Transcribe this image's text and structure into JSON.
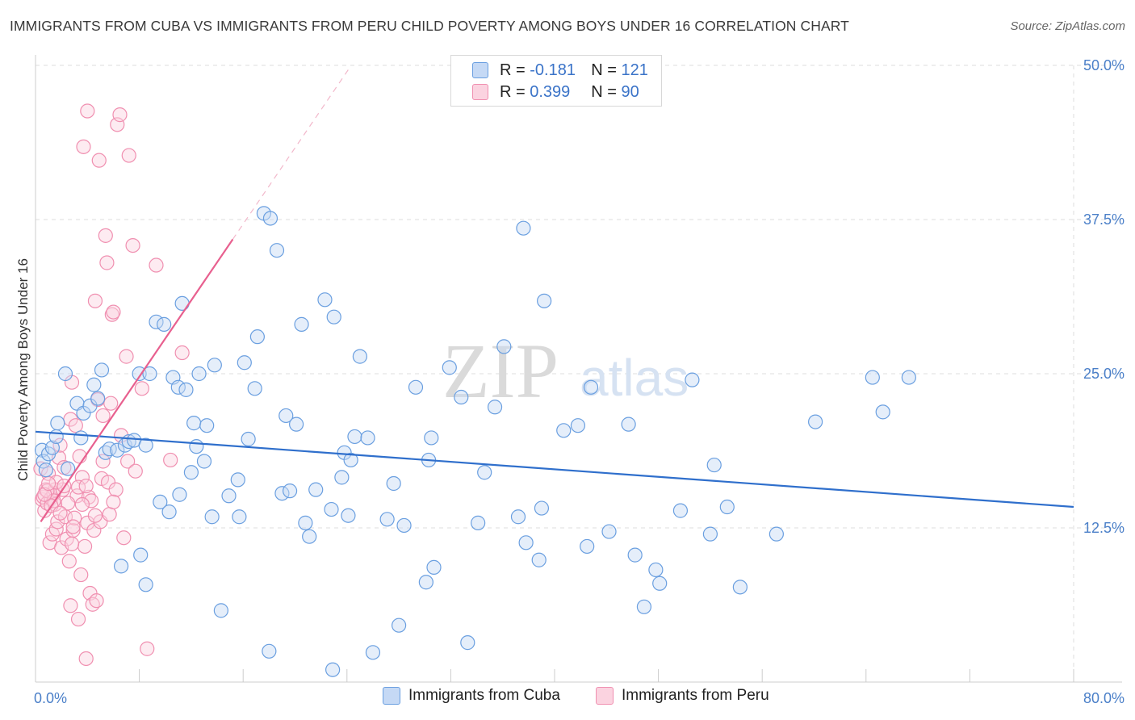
{
  "title": "IMMIGRANTS FROM CUBA VS IMMIGRANTS FROM PERU CHILD POVERTY AMONG BOYS UNDER 16 CORRELATION CHART",
  "source": "Source: ZipAtlas.com",
  "watermark": {
    "zip": "ZIP",
    "atlas": "atlas"
  },
  "legend": {
    "cuba": {
      "r_label": "R = ",
      "r_value": "-0.181",
      "n_label": "N = ",
      "n_value": "121"
    },
    "peru": {
      "r_label": "R = ",
      "r_value": "0.399",
      "n_label": "N = ",
      "n_value": "90"
    }
  },
  "bottom_legend": {
    "cuba": "Immigrants from Cuba",
    "peru": "Immigrants from Peru"
  },
  "colors": {
    "cuba": "#6a9fe0",
    "cuba_fill": "#c5d9f5",
    "cuba_line": "#2f6fcc",
    "peru": "#f08fb0",
    "peru_fill": "#fbd3e0",
    "peru_line": "#e8608f",
    "axis_text": "#4a7fc8",
    "grid": "#dddddd"
  },
  "chart_data": {
    "type": "scatter",
    "title": "IMMIGRANTS FROM CUBA VS IMMIGRANTS FROM PERU CHILD POVERTY AMONG BOYS UNDER 16 CORRELATION CHART",
    "xlabel": "",
    "ylabel": "Child Poverty Among Boys Under 16",
    "xlim": [
      0,
      80
    ],
    "ylim": [
      0,
      50
    ],
    "x_tick_labels": [
      {
        "value": 0,
        "label": "0.0%"
      },
      {
        "value": 80,
        "label": "80.0%"
      }
    ],
    "y_tick_labels": [
      {
        "value": 12.5,
        "label": "12.5%"
      },
      {
        "value": 25,
        "label": "25.0%"
      },
      {
        "value": 37.5,
        "label": "37.5%"
      },
      {
        "value": 50,
        "label": "50.0%"
      }
    ],
    "grid": true,
    "legend_position": "top-center",
    "series": [
      {
        "name": "Immigrants from Cuba",
        "r": -0.181,
        "n": 121,
        "trend": {
          "x": [
            0,
            80
          ],
          "y": [
            20.3,
            14.2
          ]
        },
        "points": [
          [
            0.5,
            18.8
          ],
          [
            0.6,
            17.9
          ],
          [
            0.8,
            17.2
          ],
          [
            1.0,
            18.5
          ],
          [
            1.3,
            19.0
          ],
          [
            1.6,
            19.9
          ],
          [
            1.7,
            21.0
          ],
          [
            2.3,
            25.0
          ],
          [
            2.5,
            17.3
          ],
          [
            3.2,
            22.6
          ],
          [
            3.5,
            19.8
          ],
          [
            3.7,
            21.8
          ],
          [
            4.2,
            22.4
          ],
          [
            4.5,
            24.1
          ],
          [
            4.8,
            23.0
          ],
          [
            5.1,
            25.3
          ],
          [
            5.4,
            18.6
          ],
          [
            5.7,
            18.9
          ],
          [
            6.3,
            18.8
          ],
          [
            6.6,
            9.4
          ],
          [
            6.9,
            19.2
          ],
          [
            7.2,
            19.5
          ],
          [
            7.6,
            19.6
          ],
          [
            8.0,
            25.0
          ],
          [
            8.1,
            10.3
          ],
          [
            8.5,
            19.2
          ],
          [
            8.5,
            7.9
          ],
          [
            8.8,
            25.0
          ],
          [
            9.3,
            29.2
          ],
          [
            9.6,
            14.6
          ],
          [
            9.9,
            29.0
          ],
          [
            10.3,
            13.8
          ],
          [
            10.6,
            24.7
          ],
          [
            11.0,
            23.9
          ],
          [
            11.1,
            15.2
          ],
          [
            11.3,
            30.7
          ],
          [
            11.6,
            23.7
          ],
          [
            12.0,
            17.0
          ],
          [
            12.2,
            21.0
          ],
          [
            12.4,
            19.1
          ],
          [
            12.6,
            25.0
          ],
          [
            13.0,
            17.9
          ],
          [
            13.2,
            20.8
          ],
          [
            13.6,
            13.4
          ],
          [
            13.8,
            25.7
          ],
          [
            14.3,
            5.8
          ],
          [
            14.9,
            15.1
          ],
          [
            15.6,
            16.4
          ],
          [
            15.7,
            13.4
          ],
          [
            16.1,
            25.9
          ],
          [
            16.4,
            19.7
          ],
          [
            16.9,
            23.8
          ],
          [
            17.1,
            28.0
          ],
          [
            17.6,
            38.0
          ],
          [
            18.0,
            2.5
          ],
          [
            18.1,
            37.6
          ],
          [
            18.6,
            35.0
          ],
          [
            19.0,
            15.3
          ],
          [
            19.3,
            21.6
          ],
          [
            19.6,
            15.5
          ],
          [
            20.1,
            20.9
          ],
          [
            20.5,
            29.0
          ],
          [
            20.8,
            12.9
          ],
          [
            21.1,
            11.8
          ],
          [
            21.6,
            15.6
          ],
          [
            22.3,
            31.0
          ],
          [
            22.8,
            14.0
          ],
          [
            22.9,
            1.0
          ],
          [
            23.0,
            29.6
          ],
          [
            23.6,
            16.6
          ],
          [
            23.8,
            18.6
          ],
          [
            24.1,
            13.5
          ],
          [
            24.3,
            18.0
          ],
          [
            24.6,
            19.9
          ],
          [
            25.0,
            26.4
          ],
          [
            25.6,
            19.8
          ],
          [
            26.0,
            2.4
          ],
          [
            27.1,
            13.2
          ],
          [
            27.6,
            16.1
          ],
          [
            28.0,
            4.6
          ],
          [
            28.4,
            12.7
          ],
          [
            29.3,
            23.9
          ],
          [
            30.1,
            8.1
          ],
          [
            30.3,
            18.0
          ],
          [
            30.5,
            19.8
          ],
          [
            30.7,
            9.3
          ],
          [
            31.9,
            25.5
          ],
          [
            32.8,
            23.1
          ],
          [
            33.3,
            3.2
          ],
          [
            34.1,
            12.9
          ],
          [
            34.6,
            17.0
          ],
          [
            35.4,
            22.3
          ],
          [
            36.1,
            27.2
          ],
          [
            37.2,
            13.4
          ],
          [
            37.6,
            36.8
          ],
          [
            37.8,
            11.3
          ],
          [
            38.8,
            9.9
          ],
          [
            39.2,
            30.9
          ],
          [
            39.0,
            14.1
          ],
          [
            40.7,
            20.4
          ],
          [
            41.8,
            20.8
          ],
          [
            42.5,
            11.0
          ],
          [
            42.8,
            23.9
          ],
          [
            44.2,
            12.2
          ],
          [
            45.7,
            20.9
          ],
          [
            46.2,
            10.3
          ],
          [
            46.9,
            6.1
          ],
          [
            47.8,
            9.1
          ],
          [
            48.1,
            8.0
          ],
          [
            49.7,
            13.9
          ],
          [
            50.6,
            24.5
          ],
          [
            52.0,
            12.0
          ],
          [
            52.3,
            17.6
          ],
          [
            53.3,
            14.2
          ],
          [
            54.3,
            7.7
          ],
          [
            57.1,
            12.0
          ],
          [
            60.1,
            21.1
          ],
          [
            64.5,
            24.7
          ],
          [
            65.3,
            21.9
          ],
          [
            67.3,
            24.7
          ]
        ]
      },
      {
        "name": "Immigrants from Peru",
        "r": 0.399,
        "n": 90,
        "trend": {
          "x": [
            0.4,
            15.2
          ],
          "y": [
            13.0,
            35.9
          ]
        },
        "trend_dashed": {
          "x": [
            15.2,
            24.2
          ],
          "y": [
            35.9,
            49.8
          ]
        },
        "points": [
          [
            0.4,
            17.3
          ],
          [
            0.5,
            14.8
          ],
          [
            0.6,
            15.0
          ],
          [
            0.7,
            13.9
          ],
          [
            0.8,
            15.6
          ],
          [
            0.9,
            14.5
          ],
          [
            1.0,
            16.9
          ],
          [
            1.1,
            11.3
          ],
          [
            1.2,
            14.9
          ],
          [
            1.3,
            12.0
          ],
          [
            1.4,
            15.3
          ],
          [
            1.5,
            14.4
          ],
          [
            1.5,
            15.6
          ],
          [
            1.6,
            12.4
          ],
          [
            1.7,
            13.0
          ],
          [
            1.8,
            18.2
          ],
          [
            1.9,
            19.2
          ],
          [
            2.0,
            10.9
          ],
          [
            2.1,
            15.6
          ],
          [
            2.2,
            17.4
          ],
          [
            2.3,
            13.4
          ],
          [
            2.4,
            11.6
          ],
          [
            2.6,
            9.8
          ],
          [
            2.7,
            21.3
          ],
          [
            2.7,
            6.2
          ],
          [
            2.8,
            24.3
          ],
          [
            2.9,
            12.3
          ],
          [
            3.0,
            13.3
          ],
          [
            3.1,
            20.8
          ],
          [
            3.2,
            15.1
          ],
          [
            3.3,
            5.1
          ],
          [
            3.4,
            18.3
          ],
          [
            3.5,
            8.7
          ],
          [
            3.6,
            16.6
          ],
          [
            3.7,
            43.4
          ],
          [
            3.8,
            11.0
          ],
          [
            3.9,
            1.9
          ],
          [
            4.0,
            12.9
          ],
          [
            4.1,
            15.0
          ],
          [
            4.2,
            7.2
          ],
          [
            4.3,
            14.7
          ],
          [
            4.4,
            6.3
          ],
          [
            4.5,
            12.3
          ],
          [
            4.6,
            30.9
          ],
          [
            4.7,
            6.6
          ],
          [
            4.8,
            22.9
          ],
          [
            4.9,
            42.3
          ],
          [
            5.0,
            13.0
          ],
          [
            5.1,
            16.5
          ],
          [
            5.2,
            21.6
          ],
          [
            5.4,
            36.2
          ],
          [
            5.5,
            34.0
          ],
          [
            5.6,
            16.2
          ],
          [
            5.7,
            13.6
          ],
          [
            5.8,
            22.6
          ],
          [
            5.9,
            29.8
          ],
          [
            6.0,
            30.0
          ],
          [
            6.2,
            15.6
          ],
          [
            6.3,
            45.2
          ],
          [
            6.5,
            46.0
          ],
          [
            6.6,
            20.0
          ],
          [
            6.8,
            11.7
          ],
          [
            7.0,
            26.4
          ],
          [
            7.1,
            17.9
          ],
          [
            7.2,
            42.7
          ],
          [
            7.5,
            35.4
          ],
          [
            7.7,
            17.1
          ],
          [
            8.2,
            23.8
          ],
          [
            8.6,
            2.7
          ],
          [
            9.3,
            33.8
          ],
          [
            10.4,
            18.0
          ],
          [
            11.3,
            26.7
          ],
          [
            0.9,
            15.5
          ],
          [
            1.4,
            14.7
          ],
          [
            2.5,
            14.5
          ],
          [
            3.3,
            15.8
          ],
          [
            4.0,
            46.3
          ],
          [
            1.6,
            16.2
          ],
          [
            2.9,
            12.6
          ],
          [
            1.2,
            14.3
          ],
          [
            0.7,
            15.2
          ],
          [
            1.9,
            13.7
          ],
          [
            2.8,
            11.2
          ],
          [
            3.6,
            14.4
          ],
          [
            4.6,
            13.5
          ],
          [
            2.2,
            15.9
          ],
          [
            1.0,
            16.1
          ],
          [
            3.9,
            15.9
          ],
          [
            5.2,
            17.9
          ],
          [
            6.0,
            14.6
          ]
        ]
      }
    ]
  }
}
